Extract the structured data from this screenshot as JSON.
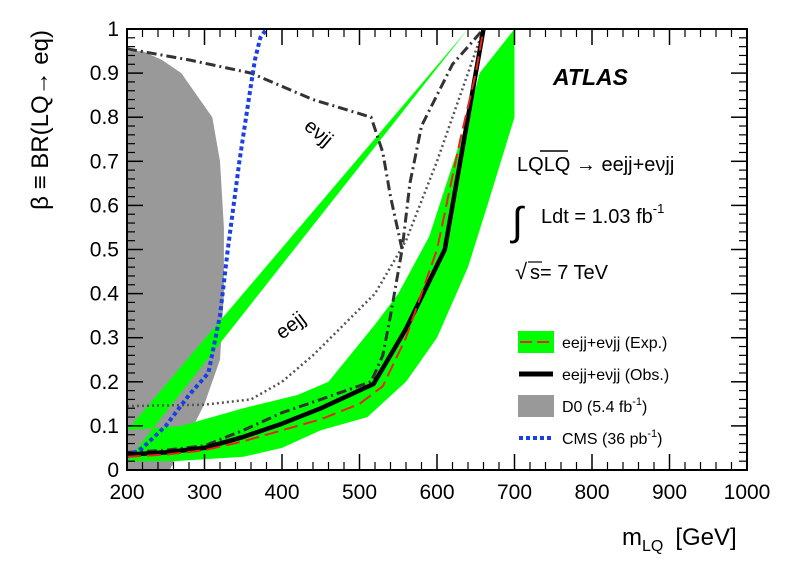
{
  "chart_data": {
    "type": "line",
    "experiment_label": "ATLAS",
    "xlabel_main": "m",
    "xlabel_sub": "LQ",
    "xlabel_unit": "[GeV]",
    "ylabel": "β ≡ BR(LQ→ eq)",
    "xlim": [
      200,
      1000
    ],
    "ylim": [
      0,
      1
    ],
    "x_ticks": [
      {
        "value": 200,
        "label": "200"
      },
      {
        "value": 300,
        "label": "300"
      },
      {
        "value": 400,
        "label": "400"
      },
      {
        "value": 500,
        "label": "500"
      },
      {
        "value": 600,
        "label": "600"
      },
      {
        "value": 700,
        "label": "700"
      },
      {
        "value": 800,
        "label": "800"
      },
      {
        "value": 900,
        "label": "900"
      },
      {
        "value": 1000,
        "label": "1000"
      }
    ],
    "y_ticks": [
      {
        "value": 0,
        "label": "0"
      },
      {
        "value": 0.1,
        "label": "0.1"
      },
      {
        "value": 0.2,
        "label": "0.2"
      },
      {
        "value": 0.3,
        "label": "0.3"
      },
      {
        "value": 0.4,
        "label": "0.4"
      },
      {
        "value": 0.5,
        "label": "0.5"
      },
      {
        "value": 0.6,
        "label": "0.6"
      },
      {
        "value": 0.7,
        "label": "0.7"
      },
      {
        "value": 0.8,
        "label": "0.8"
      },
      {
        "value": 0.9,
        "label": "0.9"
      },
      {
        "value": 1,
        "label": "1"
      }
    ],
    "annotations": {
      "process_lq": "LQ",
      "process_lqbar": "LQ",
      "process_rest": " → eejj+eνjj",
      "lumi_symbol": "∫",
      "lumi_text": "Ldt = 1.03 fb",
      "lumi_exp": "-1",
      "energy_symbol": "√",
      "energy_text": "s= 7 TeV",
      "evjj_label": "eνjj",
      "eejj_label": "eejj"
    },
    "legend": {
      "position": "bottom-right",
      "entries": [
        {
          "key": "exp",
          "label": "eejj+eνjj (Exp.)"
        },
        {
          "key": "obs",
          "label": "eejj+eνjj (Obs.)"
        },
        {
          "key": "d0",
          "label": "D0 (5.4 fb",
          "sup": "-1",
          "close": ")"
        },
        {
          "key": "cms",
          "label": "CMS (36 pb",
          "sup": "-1",
          "close": ")"
        }
      ]
    },
    "colors": {
      "band": "#00ff00",
      "observed": "#000000",
      "expected": "#e8241c",
      "d0": "#999999",
      "cms": "#1a3fe6",
      "eejj": "#555555",
      "evjj": "#333333"
    },
    "series": [
      {
        "key": "band",
        "kind": "band",
        "upper_x": [
          200,
          270,
          350,
          420,
          460,
          520,
          550,
          590,
          640,
          655,
          700
        ],
        "upper_y": [
          0.09,
          0.1,
          0.14,
          0.17,
          0.2,
          0.33,
          0.4,
          0.53,
          0.8,
          0.9,
          1.0
        ],
        "lower_x": [
          200,
          260,
          350,
          400,
          450,
          510,
          560,
          600,
          640,
          665,
          700
        ],
        "lower_y": [
          0.02,
          0.02,
          0.03,
          0.05,
          0.09,
          0.12,
          0.2,
          0.3,
          0.46,
          0.6,
          0.8
        ],
        "left_edge_top_x": 640,
        "left_edge_top_y": 1.0
      },
      {
        "key": "obs",
        "name": "eejj+eνjj (Obs.)",
        "x": [
          200,
          250,
          300,
          350,
          400,
          450,
          518,
          560,
          610,
          640,
          660
        ],
        "y": [
          0.035,
          0.04,
          0.05,
          0.075,
          0.105,
          0.14,
          0.195,
          0.32,
          0.5,
          0.8,
          1.0
        ]
      },
      {
        "key": "exp",
        "name": "eejj+eνjj (Exp.)",
        "x": [
          200,
          250,
          300,
          350,
          400,
          450,
          500,
          530,
          560,
          600,
          630,
          650,
          660
        ],
        "y": [
          0.03,
          0.035,
          0.045,
          0.065,
          0.09,
          0.115,
          0.15,
          0.19,
          0.3,
          0.5,
          0.75,
          0.9,
          1.0
        ]
      },
      {
        "key": "d0",
        "name": "D0 (5.4 fb-1)",
        "x": [
          200,
          200,
          220,
          245,
          270,
          290,
          310,
          320,
          325,
          325,
          320,
          300,
          280,
          255
        ],
        "y": [
          0.0,
          0.95,
          0.95,
          0.93,
          0.9,
          0.85,
          0.8,
          0.7,
          0.55,
          0.4,
          0.25,
          0.15,
          0.08,
          0.0
        ]
      },
      {
        "key": "cms",
        "name": "CMS (36 pb-1)",
        "x": [
          200,
          220,
          250,
          280,
          305,
          320,
          330,
          345,
          358,
          365,
          372,
          380
        ],
        "y": [
          0.03,
          0.05,
          0.1,
          0.17,
          0.22,
          0.35,
          0.5,
          0.7,
          0.85,
          0.93,
          0.98,
          1.0
        ]
      },
      {
        "key": "eejj",
        "x": [
          200,
          300,
          360,
          400,
          440,
          480,
          520,
          560,
          600,
          640,
          660
        ],
        "y": [
          0.145,
          0.148,
          0.16,
          0.2,
          0.26,
          0.33,
          0.4,
          0.52,
          0.7,
          0.9,
          1.0
        ]
      },
      {
        "key": "evjj",
        "x": [
          200,
          250,
          300,
          350,
          400,
          450,
          515,
          530,
          540,
          555,
          565,
          580,
          620,
          650,
          660
        ],
        "y": [
          0.04,
          0.045,
          0.055,
          0.09,
          0.13,
          0.16,
          0.2,
          0.26,
          0.35,
          0.5,
          0.65,
          0.78,
          0.92,
          0.98,
          1.0
        ]
      },
      {
        "key": "evjj_top",
        "x": [
          200,
          280,
          360,
          440,
          515,
          530,
          540,
          555
        ],
        "y": [
          0.955,
          0.93,
          0.9,
          0.84,
          0.8,
          0.72,
          0.62,
          0.5
        ]
      }
    ]
  }
}
